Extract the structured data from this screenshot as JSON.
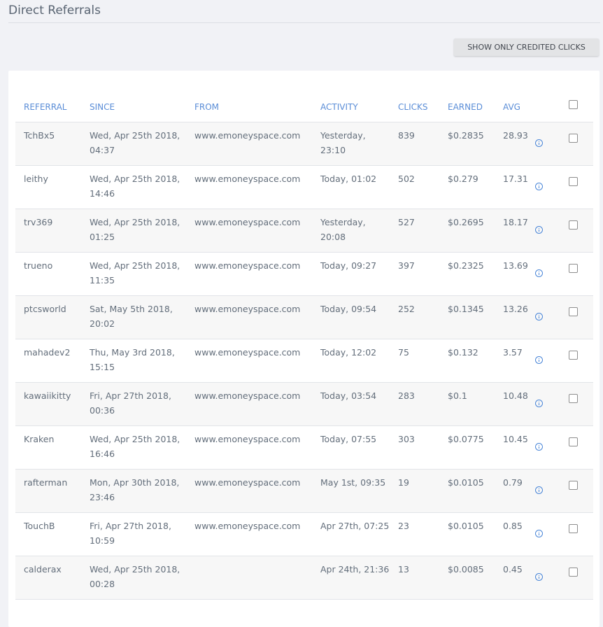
{
  "page": {
    "title": "Direct Referrals",
    "credited_button_label": "SHOW ONLY CREDITED CLICKS"
  },
  "table": {
    "headers": {
      "referral": "REFERRAL",
      "since": "SINCE",
      "from": "FROM",
      "activity": "ACTIVITY",
      "clicks": "CLICKS",
      "earned": "EARNED",
      "avg": "AVG"
    },
    "rows": [
      {
        "referral": "TchBx5",
        "since": "Wed, Apr 25th 2018, 04:37",
        "from": "www.emoneyspace.com",
        "activity": "Yesterday, 23:10",
        "clicks": "839",
        "earned": "$0.2835",
        "avg": "28.93"
      },
      {
        "referral": "leithy",
        "since": "Wed, Apr 25th 2018, 14:46",
        "from": "www.emoneyspace.com",
        "activity": "Today, 01:02",
        "clicks": "502",
        "earned": "$0.279",
        "avg": "17.31"
      },
      {
        "referral": "trv369",
        "since": "Wed, Apr 25th 2018, 01:25",
        "from": "www.emoneyspace.com",
        "activity": "Yesterday, 20:08",
        "clicks": "527",
        "earned": "$0.2695",
        "avg": "18.17"
      },
      {
        "referral": "trueno",
        "since": "Wed, Apr 25th 2018, 11:35",
        "from": "www.emoneyspace.com",
        "activity": "Today, 09:27",
        "clicks": "397",
        "earned": "$0.2325",
        "avg": "13.69"
      },
      {
        "referral": "ptcsworld",
        "since": "Sat, May 5th 2018, 20:02",
        "from": "www.emoneyspace.com",
        "activity": "Today, 09:54",
        "clicks": "252",
        "earned": "$0.1345",
        "avg": "13.26"
      },
      {
        "referral": "mahadev2",
        "since": "Thu, May 3rd 2018, 15:15",
        "from": "www.emoneyspace.com",
        "activity": "Today, 12:02",
        "clicks": "75",
        "earned": "$0.132",
        "avg": "3.57"
      },
      {
        "referral": "kawaiikitty",
        "since": "Fri, Apr 27th 2018, 00:36",
        "from": "www.emoneyspace.com",
        "activity": "Today, 03:54",
        "clicks": "283",
        "earned": "$0.1",
        "avg": "10.48"
      },
      {
        "referral": "Kraken",
        "since": "Wed, Apr 25th 2018, 16:46",
        "from": "www.emoneyspace.com",
        "activity": "Today, 07:55",
        "clicks": "303",
        "earned": "$0.0775",
        "avg": "10.45"
      },
      {
        "referral": "rafterman",
        "since": "Mon, Apr 30th 2018, 23:46",
        "from": "www.emoneyspace.com",
        "activity": "May 1st, 09:35",
        "clicks": "19",
        "earned": "$0.0105",
        "avg": "0.79"
      },
      {
        "referral": "TouchB",
        "since": "Fri, Apr 27th 2018, 10:59",
        "from": "www.emoneyspace.com",
        "activity": "Apr 27th, 07:25",
        "clicks": "23",
        "earned": "$0.0105",
        "avg": "0.85"
      },
      {
        "referral": "calderax",
        "since": "Wed, Apr 25th 2018, 00:28",
        "from": "",
        "activity": "Apr 24th, 21:36",
        "clicks": "13",
        "earned": "$0.0085",
        "avg": "0.45"
      }
    ]
  },
  "icons": {
    "row_info": "info-icon",
    "row_select": "checkbox",
    "select_all": "checkbox"
  },
  "colors": {
    "header_text": "#5a8dd7",
    "info_icon": "#4a86d8",
    "body_text": "#636e7b",
    "background": "#f1f2f6"
  }
}
